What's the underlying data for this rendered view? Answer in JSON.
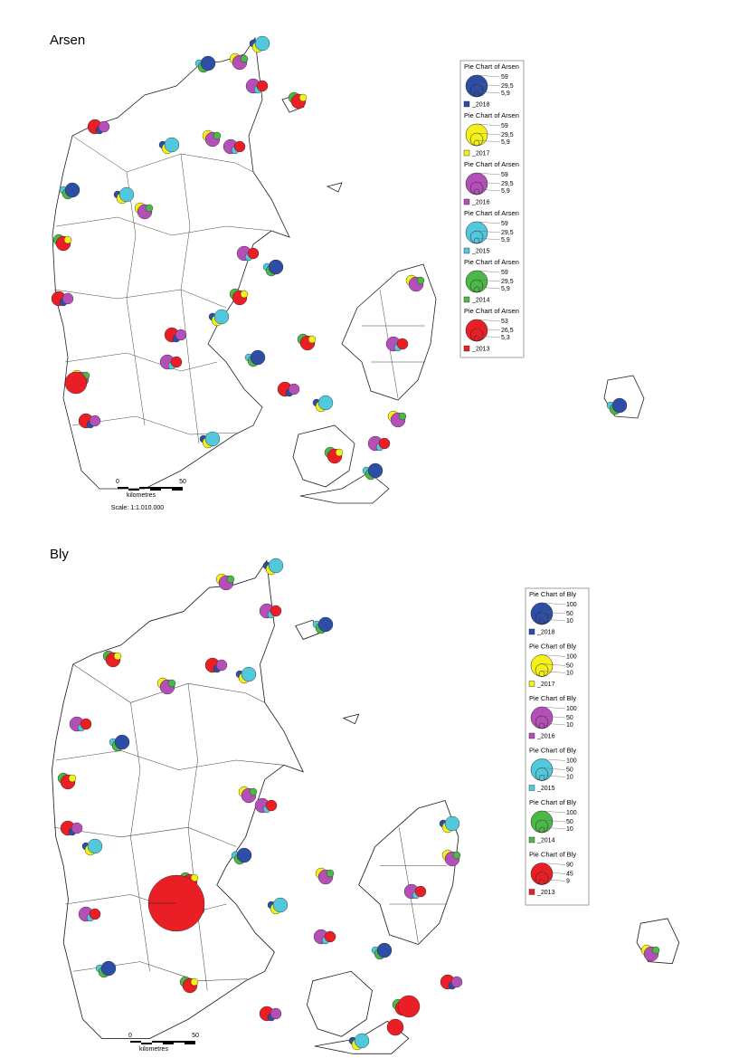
{
  "maps": [
    {
      "title": "Arsen",
      "legend": [
        {
          "title": "Pie Chart of Arsen",
          "sizes": [
            "59",
            "29,5",
            "5,9"
          ],
          "label": "_2018",
          "color": "#2e4da5"
        },
        {
          "title": "Pie Chart of Arsen",
          "sizes": [
            "59",
            "29,5",
            "5,9"
          ],
          "label": "_2017",
          "color": "#f5ef1a"
        },
        {
          "title": "Pie Chart of Arsen",
          "sizes": [
            "59",
            "29,5",
            "5,9"
          ],
          "label": "_2016",
          "color": "#b44fb8"
        },
        {
          "title": "Pie Chart of Arsen",
          "sizes": [
            "59",
            "29,5",
            "5,9"
          ],
          "label": "_2015",
          "color": "#52c8dd"
        },
        {
          "title": "Pie Chart of Arsen",
          "sizes": [
            "59",
            "29,5",
            "5,9"
          ],
          "label": "_2014",
          "color": "#4cb848"
        },
        {
          "title": "Pie Chart of Arsen",
          "sizes": [
            "53",
            "26,5",
            "5,3"
          ],
          "label": "_2013",
          "color": "#ea1f25"
        }
      ],
      "scale": {
        "ticks": [
          "0",
          "50"
        ],
        "unit": "kilometres",
        "text": "Scale: 1:1.010.000"
      }
    },
    {
      "title": "Bly",
      "legend": [
        {
          "title": "Pie Chart of Bly",
          "sizes": [
            "100",
            "50",
            "10"
          ],
          "label": "_2018",
          "color": "#2e4da5"
        },
        {
          "title": "Pie Chart of Bly",
          "sizes": [
            "100",
            "50",
            "10"
          ],
          "label": "_2017",
          "color": "#f5ef1a"
        },
        {
          "title": "Pie Chart of Bly",
          "sizes": [
            "100",
            "50",
            "10"
          ],
          "label": "_2016",
          "color": "#b44fb8"
        },
        {
          "title": "Pie Chart of Bly",
          "sizes": [
            "100",
            "50",
            "10"
          ],
          "label": "_2015",
          "color": "#52c8dd"
        },
        {
          "title": "Pie Chart of Bly",
          "sizes": [
            "100",
            "50",
            "10"
          ],
          "label": "_2014",
          "color": "#4cb848"
        },
        {
          "title": "Pie Chart of Bly",
          "sizes": [
            "90",
            "45",
            "9"
          ],
          "label": "_2013",
          "color": "#ea1f25"
        }
      ],
      "scale": {
        "ticks": [
          "0",
          "50"
        ],
        "unit": "kilometres"
      }
    }
  ]
}
